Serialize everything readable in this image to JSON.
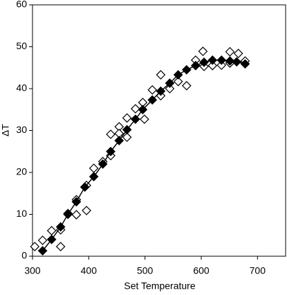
{
  "chart_data": {
    "type": "scatter",
    "xlabel": "Set Temperature",
    "ylabel": "ΔT",
    "xlim": [
      300,
      750
    ],
    "xticks": [
      300,
      400,
      500,
      600,
      700
    ],
    "ylim": [
      0,
      60
    ],
    "yticks": [
      0,
      10,
      20,
      30,
      40,
      50,
      60
    ],
    "series": [
      {
        "color": "#000000",
        "marker": "open",
        "line": false,
        "x": [
          304,
          318,
          334,
          350,
          350,
          363,
          378,
          378,
          396,
          396,
          409,
          425,
          439,
          439,
          454,
          454,
          468,
          468,
          483,
          496,
          499,
          513,
          528,
          528,
          544,
          559,
          574,
          590,
          603,
          605,
          620,
          636,
          651,
          651,
          666,
          678
        ],
        "values": [
          2.3,
          3.8,
          6.1,
          2.3,
          6.3,
          10.2,
          13.5,
          9.9,
          16.9,
          10.9,
          21,
          22.6,
          24,
          29.1,
          30.9,
          29.3,
          33,
          28.4,
          35.2,
          36.7,
          32.7,
          39.7,
          43.3,
          38.3,
          40,
          41.7,
          40.7,
          46.8,
          48.9,
          45.3,
          45.5,
          45.6,
          46.1,
          48.8,
          48.4,
          46.6
        ]
      },
      {
        "color": "#000000",
        "marker": "filled",
        "line": true,
        "x": [
          318,
          334,
          350,
          363,
          378,
          393,
          409,
          425,
          439,
          454,
          468,
          483,
          496,
          513,
          528,
          544,
          559,
          574,
          590,
          605,
          620,
          636,
          651,
          663,
          678
        ],
        "values": [
          1.3,
          4,
          7,
          10,
          13,
          16.5,
          19,
          22,
          25,
          27.6,
          30.2,
          32.7,
          35,
          37.3,
          39.4,
          41.3,
          43.3,
          44.5,
          45.5,
          46.3,
          46.8,
          46.8,
          46.6,
          46.4,
          45.9
        ]
      }
    ]
  }
}
